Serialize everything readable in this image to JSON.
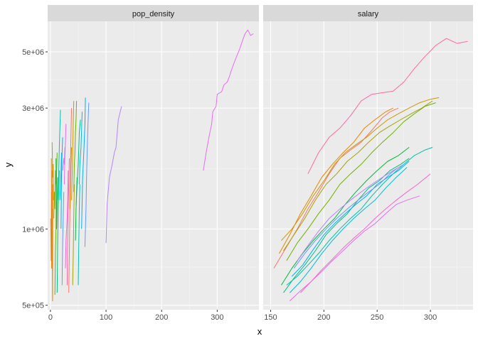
{
  "chart_data": {
    "type": "line",
    "xlabel": "x",
    "ylabel": "y",
    "y_scale": "log10",
    "ylim": [
      480000,
      6600000
    ],
    "y_ticks": [
      {
        "value": 500000,
        "label": "5e+05"
      },
      {
        "value": 1000000,
        "label": "1e+06"
      },
      {
        "value": 3000000,
        "label": "3e+06"
      },
      {
        "value": 5000000,
        "label": "5e+06"
      }
    ],
    "grid": true,
    "legend": "none",
    "colors": [
      "#F8766D",
      "#E58700",
      "#C99800",
      "#A3A500",
      "#6BB100",
      "#00BA38",
      "#00BF7D",
      "#00C0AF",
      "#00BCD8",
      "#00B0F6",
      "#619CFF",
      "#B983FF",
      "#E76BF3",
      "#FD61D1",
      "#FF67A4"
    ],
    "panels": [
      {
        "strip": "pop_density",
        "xlim": [
          -5,
          375
        ],
        "x_ticks": [
          0,
          100,
          200,
          300
        ],
        "series": [
          {
            "x": [
              0.5,
              1.2,
              1.8,
              2.5,
              3
            ],
            "y": [
              1100000,
              750000,
              1400000,
              900000,
              1700000
            ]
          },
          {
            "x": [
              1.5,
              2.2,
              3.1,
              3.8,
              4.2
            ],
            "y": [
              1900000,
              700000,
              1200000,
              520000,
              1500000
            ]
          },
          {
            "x": [
              3,
              4,
              5,
              5.5
            ],
            "y": [
              2200000,
              1600000,
              1800000,
              1300000
            ]
          },
          {
            "x": [
              6,
              7,
              8,
              9,
              10
            ],
            "y": [
              1100000,
              1400000,
              1200000,
              1700000,
              1500000
            ]
          },
          {
            "x": [
              8,
              9,
              10,
              11,
              12
            ],
            "y": [
              550000,
              800000,
              1000000,
              1600000,
              2000000
            ]
          },
          {
            "x": [
              10,
              11,
              12,
              13
            ],
            "y": [
              1900000,
              1000000,
              1300000,
              1600000
            ]
          },
          {
            "x": [
              12,
              13,
              14,
              15,
              16
            ],
            "y": [
              560000,
              900000,
              1200000,
              1400000,
              1700000
            ]
          },
          {
            "x": [
              14,
              15,
              16,
              17,
              18
            ],
            "y": [
              1300000,
              1700000,
              2100000,
              2500000,
              2950000
            ]
          },
          {
            "x": [
              17,
              18,
              19,
              20
            ],
            "y": [
              1300000,
              1500000,
              1700000,
              2000000
            ]
          },
          {
            "x": [
              19,
              20,
              21,
              22
            ],
            "y": [
              1000000,
              1600000,
              2000000,
              2300000
            ]
          },
          {
            "x": [
              21,
              22,
              23,
              24
            ],
            "y": [
              600000,
              900000,
              1100000,
              1400000
            ]
          },
          {
            "x": [
              22,
              24,
              25,
              26
            ],
            "y": [
              1700000,
              1900000,
              1800000,
              2100000
            ]
          },
          {
            "x": [
              25,
              26,
              27,
              28
            ],
            "y": [
              1500000,
              1900000,
              2200000,
              2600000
            ]
          },
          {
            "x": [
              27,
              28,
              30,
              31,
              32
            ],
            "y": [
              700000,
              900000,
              1100000,
              1300000,
              1700000
            ]
          },
          {
            "x": [
              30,
              31,
              32,
              33,
              34
            ],
            "y": [
              600000,
              900000,
              1200000,
              1500000,
              1900000
            ]
          },
          {
            "x": [
              33,
              34,
              35,
              36,
              37,
              38
            ],
            "y": [
              560000,
              800000,
              1200000,
              1700000,
              2400000,
              3000000
            ]
          },
          {
            "x": [
              35,
              36,
              37,
              38
            ],
            "y": [
              1200000,
              1400000,
              1800000,
              2100000
            ]
          },
          {
            "x": [
              38,
              39,
              40,
              41,
              42
            ],
            "y": [
              1300000,
              1600000,
              2000000,
              2600000,
              3200000
            ]
          },
          {
            "x": [
              40,
              41,
              42,
              43
            ],
            "y": [
              600000,
              800000,
              1100000,
              1500000
            ]
          },
          {
            "x": [
              42,
              43,
              44,
              45,
              46,
              47
            ],
            "y": [
              1400000,
              1800000,
              2000000,
              2400000,
              2700000,
              3200000
            ]
          },
          {
            "x": [
              45,
              46,
              47,
              48
            ],
            "y": [
              900000,
              1200000,
              1400000,
              1600000
            ]
          },
          {
            "x": [
              46,
              48,
              50,
              52,
              54
            ],
            "y": [
              1200000,
              1500000,
              1800000,
              2400000,
              2700000
            ]
          },
          {
            "x": [
              50,
              51,
              52,
              53
            ],
            "y": [
              600000,
              900000,
              1200000,
              1500000
            ]
          },
          {
            "x": [
              52,
              53,
              55,
              57
            ],
            "y": [
              1500000,
              1800000,
              2100000,
              2900000
            ]
          },
          {
            "x": [
              56,
              57,
              58,
              60,
              62,
              63
            ],
            "y": [
              1000000,
              1300000,
              1600000,
              2000000,
              2600000,
              3300000
            ]
          },
          {
            "x": [
              62,
              64,
              65,
              66,
              67,
              69
            ],
            "y": [
              850000,
              1200000,
              1600000,
              2000000,
              2400000,
              3150000
            ]
          },
          {
            "x": [
              100,
              102,
              106,
              110,
              115,
              118,
              122,
              128
            ],
            "y": [
              880000,
              1250000,
              1600000,
              1750000,
              2000000,
              2100000,
              2700000,
              3050000
            ]
          },
          {
            "x": [
              275,
              280,
              285,
              290,
              292,
              298,
              300,
              305,
              308,
              312,
              318,
              322,
              325,
              330,
              335,
              340,
              345,
              350,
              355,
              360,
              365
            ],
            "y": [
              1700000,
              2000000,
              2300000,
              2600000,
              2900000,
              3050000,
              3400000,
              3450000,
              3480000,
              3700000,
              3800000,
              4000000,
              4200000,
              4500000,
              4800000,
              5100000,
              5500000,
              5900000,
              6100000,
              5800000,
              5900000
            ]
          }
        ]
      },
      {
        "strip": "salary",
        "xlim": [
          143,
          340
        ],
        "x_ticks": [
          150,
          200,
          250,
          300
        ],
        "series": [
          {
            "x": [
              153,
              165,
              175,
              185,
              195,
              205,
              215,
              225,
              235,
              245,
              255,
              262,
              270
            ],
            "y": [
              700000,
              850000,
              1000000,
              1200000,
              1400000,
              1650000,
              1900000,
              2050000,
              2200000,
              2450000,
              2750000,
              2900000,
              3000000
            ]
          },
          {
            "x": [
              158,
              168,
              178,
              188,
              198,
              208,
              218,
              228,
              238,
              248,
              258,
              265
            ],
            "y": [
              800000,
              950000,
              1150000,
              1350000,
              1600000,
              1800000,
              2000000,
              2200000,
              2500000,
              2700000,
              2900000,
              3000000
            ]
          },
          {
            "x": [
              160,
              170,
              180,
              190,
              200,
              210,
              220,
              230,
              240,
              250,
              260,
              270,
              280,
              290,
              300,
              308
            ],
            "y": [
              900000,
              1000000,
              1150000,
              1350000,
              1550000,
              1800000,
              2000000,
              2150000,
              2300000,
              2500000,
              2700000,
              2850000,
              3000000,
              3150000,
              3250000,
              3300000
            ]
          },
          {
            "x": [
              162,
              172,
              182,
              192,
              202,
              212,
              222,
              232,
              242,
              252,
              262,
              272,
              282,
              292,
              302
            ],
            "y": [
              820000,
              950000,
              1100000,
              1300000,
              1500000,
              1650000,
              1850000,
              2000000,
              2200000,
              2400000,
              2550000,
              2700000,
              2850000,
              3000000,
              3200000
            ]
          },
          {
            "x": [
              165,
              175,
              185,
              195,
              205,
              215,
              225,
              235,
              245,
              255,
              265,
              275,
              285,
              295,
              305
            ],
            "y": [
              750000,
              880000,
              1000000,
              1150000,
              1300000,
              1500000,
              1650000,
              1800000,
              2000000,
              2200000,
              2400000,
              2650000,
              2850000,
              3050000,
              3150000
            ]
          },
          {
            "x": [
              160,
              170,
              180,
              190,
              200,
              210,
              220,
              230,
              240,
              250,
              260,
              270,
              280
            ],
            "y": [
              600000,
              700000,
              800000,
              900000,
              1000000,
              1100000,
              1250000,
              1400000,
              1550000,
              1700000,
              1850000,
              1950000,
              2100000
            ]
          },
          {
            "x": [
              162,
              172,
              182,
              192,
              202,
              212,
              222,
              232,
              242,
              252,
              262,
              272,
              280
            ],
            "y": [
              560000,
              640000,
              720000,
              820000,
              950000,
              1050000,
              1150000,
              1300000,
              1450000,
              1550000,
              1700000,
              1800000,
              1900000
            ]
          },
          {
            "x": [
              165,
              175,
              185,
              195,
              205,
              215,
              225,
              235,
              245,
              255,
              265,
              275,
              285,
              295,
              302
            ],
            "y": [
              600000,
              650000,
              720000,
              800000,
              900000,
              1000000,
              1100000,
              1200000,
              1350000,
              1500000,
              1650000,
              1800000,
              1950000,
              2050000,
              2100000
            ]
          },
          {
            "x": [
              168,
              178,
              188,
              198,
              208,
              218,
              228,
              238,
              248,
              258,
              268,
              278
            ],
            "y": [
              560000,
              620000,
              700000,
              800000,
              900000,
              1000000,
              1100000,
              1200000,
              1300000,
              1450000,
              1600000,
              1750000
            ]
          },
          {
            "x": [
              170,
              180,
              190,
              200,
              210,
              220,
              230,
              240,
              250,
              260,
              270,
              280
            ],
            "y": [
              650000,
              720000,
              830000,
              950000,
              1050000,
              1150000,
              1250000,
              1350000,
              1500000,
              1600000,
              1700000,
              1850000
            ]
          },
          {
            "x": [
              172,
              182,
              192,
              202,
              212,
              222,
              232,
              242,
              252,
              262,
              270
            ],
            "y": [
              700000,
              800000,
              900000,
              1000000,
              1100000,
              1200000,
              1300000,
              1400000,
              1500000,
              1650000,
              1750000
            ]
          },
          {
            "x": [
              175,
              185,
              195,
              205,
              215,
              225,
              235,
              245,
              255,
              265,
              275
            ],
            "y": [
              750000,
              860000,
              980000,
              1100000,
              1200000,
              1300000,
              1400000,
              1500000,
              1600000,
              1700000,
              1800000
            ]
          },
          {
            "x": [
              168,
              178,
              188,
              198,
              208,
              218,
              228,
              238,
              248,
              258,
              268,
              278,
              290
            ],
            "y": [
              520000,
              570000,
              620000,
              680000,
              750000,
              820000,
              900000,
              980000,
              1050000,
              1150000,
              1250000,
              1300000,
              1350000
            ]
          },
          {
            "x": [
              178,
              188,
              198,
              208,
              218,
              228,
              238,
              248,
              258,
              268,
              278,
              288,
              300
            ],
            "y": [
              560000,
              620000,
              690000,
              760000,
              840000,
              920000,
              1000000,
              1100000,
              1200000,
              1300000,
              1400000,
              1500000,
              1650000
            ]
          },
          {
            "x": [
              185,
              195,
              205,
              215,
              225,
              235,
              245,
              255,
              265,
              275,
              285,
              295,
              305,
              315,
              325,
              335
            ],
            "y": [
              1650000,
              2000000,
              2300000,
              2500000,
              2800000,
              3200000,
              3400000,
              3450000,
              3500000,
              3800000,
              4300000,
              4800000,
              5300000,
              5650000,
              5400000,
              5500000
            ]
          }
        ]
      }
    ]
  }
}
